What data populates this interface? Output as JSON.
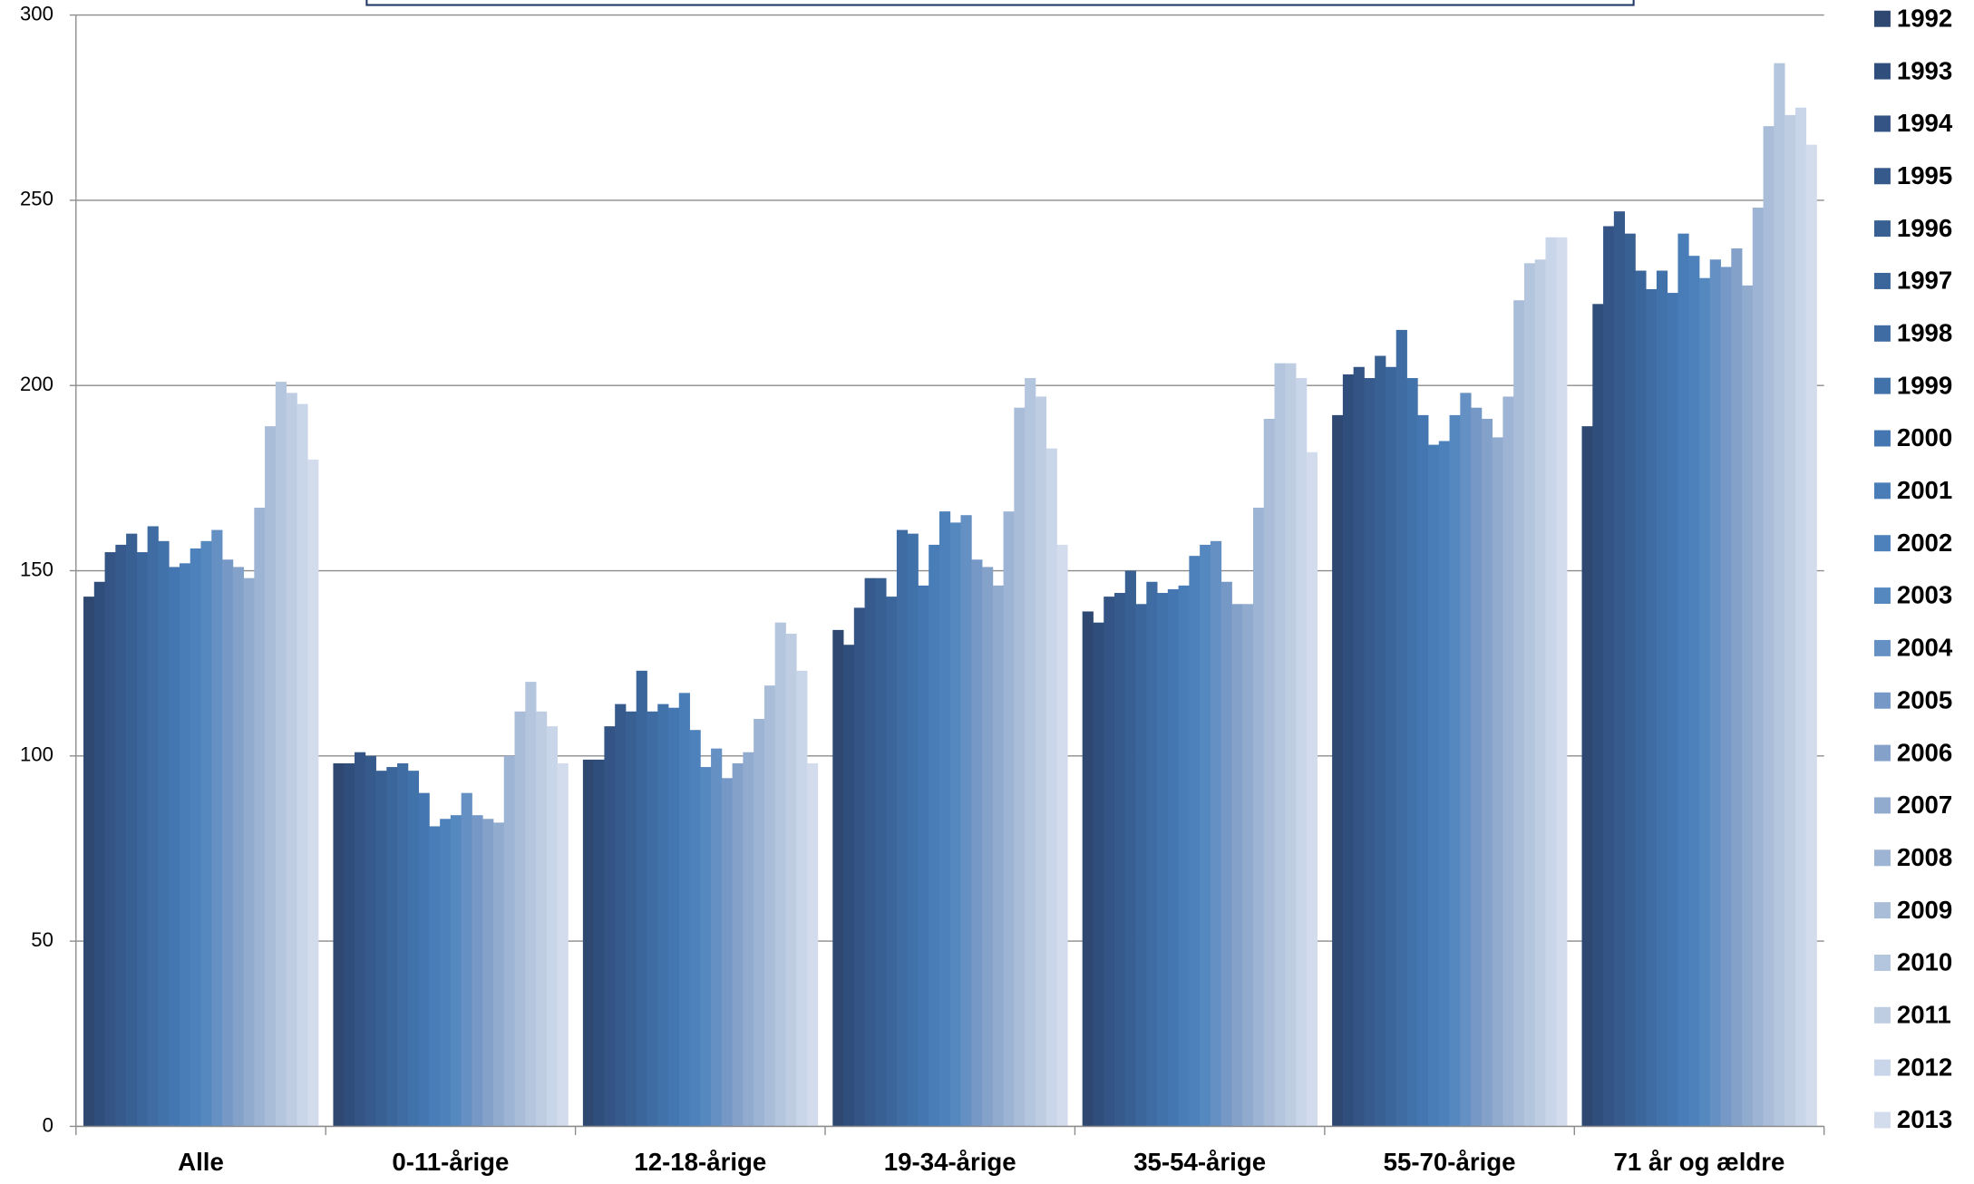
{
  "chart_data": {
    "type": "bar",
    "categories": [
      "Alle",
      "0-11-årige",
      "12-18-årige",
      "19-34-årige",
      "35-54-årige",
      "55-70-årige",
      "71 år og ældre"
    ],
    "series": [
      {
        "name": "1992",
        "color": "#2e4872",
        "values": [
          143,
          98,
          99,
          134,
          139,
          192,
          189
        ]
      },
      {
        "name": "1993",
        "color": "#304e7c",
        "values": [
          147,
          98,
          99,
          130,
          136,
          203,
          222
        ]
      },
      {
        "name": "1994",
        "color": "#335484",
        "values": [
          155,
          101,
          108,
          140,
          143,
          205,
          243
        ]
      },
      {
        "name": "1995",
        "color": "#365a8c",
        "values": [
          157,
          100,
          114,
          148,
          144,
          202,
          247
        ]
      },
      {
        "name": "1996",
        "color": "#386093",
        "values": [
          160,
          96,
          112,
          148,
          150,
          208,
          241
        ]
      },
      {
        "name": "1997",
        "color": "#3b669b",
        "values": [
          155,
          97,
          123,
          143,
          141,
          205,
          231
        ]
      },
      {
        "name": "1998",
        "color": "#3e6ca3",
        "values": [
          162,
          98,
          112,
          161,
          147,
          215,
          226
        ]
      },
      {
        "name": "1999",
        "color": "#4172aa",
        "values": [
          158,
          96,
          114,
          160,
          144,
          202,
          231
        ]
      },
      {
        "name": "2000",
        "color": "#4477b2",
        "values": [
          151,
          90,
          113,
          146,
          145,
          192,
          225
        ]
      },
      {
        "name": "2001",
        "color": "#487db8",
        "values": [
          152,
          81,
          117,
          157,
          146,
          184,
          241
        ]
      },
      {
        "name": "2002",
        "color": "#4c81bc",
        "values": [
          156,
          83,
          107,
          166,
          154,
          185,
          235
        ]
      },
      {
        "name": "2003",
        "color": "#5688c0",
        "values": [
          158,
          84,
          97,
          163,
          157,
          192,
          229
        ]
      },
      {
        "name": "2004",
        "color": "#6590c3",
        "values": [
          161,
          90,
          102,
          165,
          158,
          198,
          234
        ]
      },
      {
        "name": "2005",
        "color": "#7598c6",
        "values": [
          153,
          84,
          94,
          153,
          147,
          194,
          232
        ]
      },
      {
        "name": "2006",
        "color": "#84a1ca",
        "values": [
          151,
          83,
          98,
          151,
          141,
          191,
          237
        ]
      },
      {
        "name": "2007",
        "color": "#91abcf",
        "values": [
          148,
          82,
          101,
          146,
          141,
          186,
          227
        ]
      },
      {
        "name": "2008",
        "color": "#9db4d4",
        "values": [
          167,
          100,
          110,
          166,
          167,
          197,
          248
        ]
      },
      {
        "name": "2009",
        "color": "#a9bdd9",
        "values": [
          189,
          112,
          119,
          194,
          191,
          223,
          270
        ]
      },
      {
        "name": "2010",
        "color": "#b4c5de",
        "values": [
          201,
          120,
          136,
          202,
          206,
          233,
          287
        ]
      },
      {
        "name": "2011",
        "color": "#bfcde3",
        "values": [
          198,
          112,
          133,
          197,
          206,
          234,
          273
        ]
      },
      {
        "name": "2012",
        "color": "#c9d5e8",
        "values": [
          195,
          108,
          123,
          183,
          202,
          240,
          275
        ]
      },
      {
        "name": "2013",
        "color": "#d3dced",
        "values": [
          180,
          98,
          98,
          157,
          182,
          240,
          265
        ]
      }
    ],
    "ylim": [
      0,
      300
    ],
    "yticks": [
      0,
      50,
      100,
      150,
      200,
      250,
      300
    ],
    "grid": true,
    "legend": "right"
  }
}
